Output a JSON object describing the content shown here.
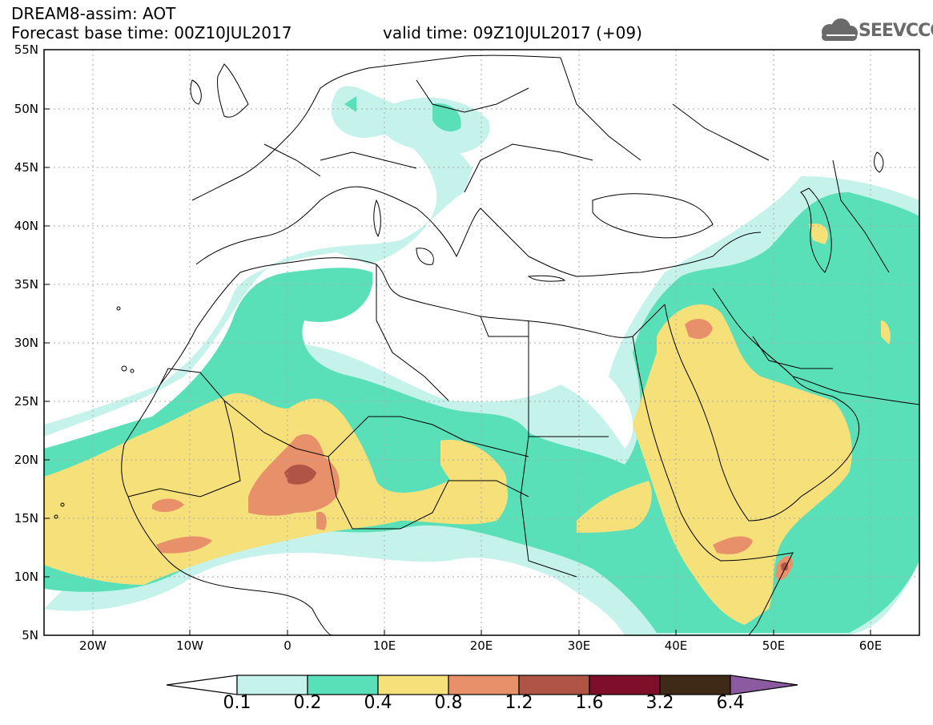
{
  "header": {
    "product": "DREAM8-assim: AOT",
    "base_time": "Forecast base time: 00Z10JUL2017",
    "valid_time": "valid time: 09Z10JUL2017 (+09)"
  },
  "logo": {
    "text": "SEEVCCC",
    "icon": "cloud-logo-icon",
    "color": "#6a6a6a"
  },
  "map": {
    "lon_range": [
      -25,
      65
    ],
    "lat_range": [
      5,
      55
    ],
    "lat_labels": [
      "55N",
      "50N",
      "45N",
      "40N",
      "35N",
      "30N",
      "25N",
      "20N",
      "15N",
      "10N",
      "5N"
    ],
    "lon_labels": [
      "20W",
      "10W",
      "0",
      "10E",
      "20E",
      "30E",
      "40E",
      "50E",
      "60E"
    ],
    "grid": true
  },
  "colorbar": {
    "labels": [
      "0.1",
      "0.2",
      "0.4",
      "0.8",
      "1.2",
      "1.6",
      "3.2",
      "6.4"
    ],
    "colors": [
      "#ffffff",
      "#c5f2ea",
      "#5ae0b8",
      "#f6e07a",
      "#e8906a",
      "#b05446",
      "#7e0e2a",
      "#3e2a16",
      "#8c5aa0"
    ]
  }
}
